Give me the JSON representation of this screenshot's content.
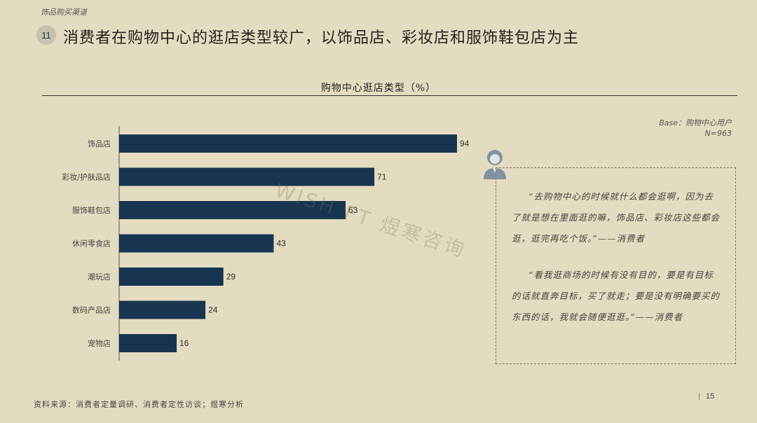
{
  "section_label": "饰品购买渠道",
  "page_badge": "11",
  "headline": "消费者在购物中心的逛店类型较广，以饰品店、彩妆店和服饰鞋包店为主",
  "base_note": {
    "line1": "Base：购物中心用户",
    "line2": "N=963"
  },
  "watermark": "WISH FT 煜寒咨询",
  "chart_data": {
    "type": "bar",
    "orientation": "horizontal",
    "title": "购物中心逛店类型（%）",
    "categories": [
      "饰品店",
      "彩妆/护肤品店",
      "服饰鞋包店",
      "休闲零食店",
      "潮玩店",
      "数码产品店",
      "宠物店"
    ],
    "values": [
      94,
      71,
      63,
      43,
      29,
      24,
      16
    ],
    "xlim": [
      0,
      100
    ],
    "bar_color": "#173550",
    "grid": false,
    "legend": "none"
  },
  "quotes": [
    "“去购物中心的时候就什么都会逛啊，因为去了就是想在里面逛的嘛，饰品店、彩妆店这些都会逛，逛完再吃个饭。”——消费者",
    "“看我逛商场的时候有没有目的，要是有目标的话就直奔目标，买了就走；要是没有明确要买的东西的话，我就会随便逛逛。”——消费者"
  ],
  "source": "资料来源：消费者定量调研、消费者定性访谈；煜寒分析",
  "page_number": "15",
  "colors": {
    "background": "#e4dcc0",
    "bar": "#173550",
    "badge": "#c6c1ae"
  }
}
